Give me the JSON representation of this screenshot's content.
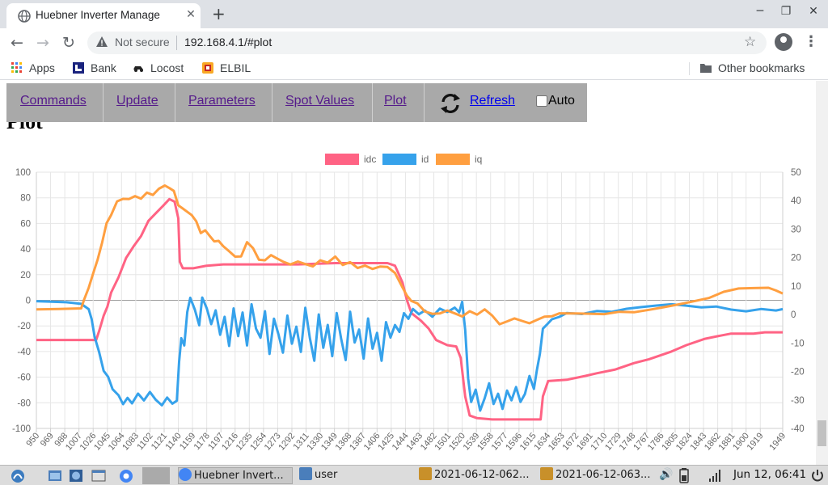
{
  "browser": {
    "tab_title": "Huebner Inverter Manage",
    "tab_close": "✕",
    "new_tab": "+",
    "url_warning": "Not secure",
    "url": "192.168.4.1/#plot",
    "bookmarks": [
      {
        "label": "Apps",
        "icon": "apps-grid-icon"
      },
      {
        "label": "Bank",
        "icon": "bank-icon"
      },
      {
        "label": "Locost",
        "icon": "car-icon"
      },
      {
        "label": "ELBIL",
        "icon": "elbil-icon"
      }
    ],
    "other_bookmarks": "Other bookmarks"
  },
  "page": {
    "heading": "Plot",
    "nav": {
      "commands": "Commands",
      "update": "Update",
      "parameters": "Parameters",
      "spot_values": "Spot Values",
      "plot": "Plot",
      "refresh": "Refresh",
      "auto": "Auto"
    }
  },
  "chart_data": {
    "type": "line",
    "legend_position": "top",
    "grid": true,
    "x": [
      950,
      969,
      988,
      1007,
      1026,
      1045,
      1064,
      1083,
      1102,
      1121,
      1140,
      1159,
      1178,
      1197,
      1216,
      1235,
      1254,
      1273,
      1292,
      1311,
      1330,
      1349,
      1368,
      1387,
      1406,
      1425,
      1444,
      1463,
      1482,
      1501,
      1520,
      1539,
      1558,
      1577,
      1596,
      1615,
      1634,
      1653,
      1672,
      1691,
      1710,
      1729,
      1748,
      1767,
      1786,
      1805,
      1824,
      1843,
      1862,
      1881,
      1900,
      1919,
      1949
    ],
    "x_tick_labels": [
      "950",
      "969",
      "988",
      "1007",
      "1026",
      "1045",
      "1064",
      "1083",
      "1102",
      "1121",
      "1140",
      "1159",
      "1178",
      "1197",
      "1216",
      "1235",
      "1254",
      "1273",
      "1292",
      "1311",
      "1330",
      "1349",
      "1368",
      "1387",
      "1406",
      "1425",
      "1444",
      "1463",
      "1482",
      "1501",
      "1520",
      "1539",
      "1558",
      "1577",
      "1596",
      "1615",
      "1634",
      "1653",
      "1672",
      "1691",
      "1710",
      "1729",
      "1748",
      "1767",
      "1786",
      "1805",
      "1824",
      "1843",
      "1862",
      "1881",
      "1900",
      "1919",
      "1949"
    ],
    "xlim": [
      950,
      1949
    ],
    "y_left": {
      "min": -100,
      "max": 100,
      "ticks": [
        100,
        80,
        60,
        40,
        20,
        0,
        -20,
        -40,
        -60,
        -80,
        -100
      ]
    },
    "y_right": {
      "min": -40,
      "max": 50,
      "ticks": [
        50,
        40,
        30,
        20,
        10,
        0,
        -10,
        -20,
        -30,
        -40
      ]
    },
    "series": [
      {
        "name": "idc",
        "color": "#ff6384",
        "axis": "left",
        "points": [
          [
            950,
            -31
          ],
          [
            1015,
            -31
          ],
          [
            1030,
            -31
          ],
          [
            1034,
            -24
          ],
          [
            1040,
            -12
          ],
          [
            1045,
            -5
          ],
          [
            1050,
            6
          ],
          [
            1060,
            18
          ],
          [
            1070,
            33
          ],
          [
            1080,
            42
          ],
          [
            1090,
            50
          ],
          [
            1100,
            62
          ],
          [
            1110,
            68
          ],
          [
            1120,
            74
          ],
          [
            1128,
            79
          ],
          [
            1135,
            77
          ],
          [
            1140,
            64
          ],
          [
            1142,
            30
          ],
          [
            1146,
            25
          ],
          [
            1160,
            25
          ],
          [
            1178,
            27
          ],
          [
            1200,
            28
          ],
          [
            1250,
            28
          ],
          [
            1300,
            28
          ],
          [
            1350,
            29
          ],
          [
            1400,
            29
          ],
          [
            1420,
            29
          ],
          [
            1430,
            27
          ],
          [
            1440,
            14
          ],
          [
            1446,
            0
          ],
          [
            1452,
            -10
          ],
          [
            1465,
            -16
          ],
          [
            1475,
            -22
          ],
          [
            1485,
            -31
          ],
          [
            1500,
            -35
          ],
          [
            1512,
            -36
          ],
          [
            1518,
            -45
          ],
          [
            1524,
            -75
          ],
          [
            1530,
            -90
          ],
          [
            1540,
            -92
          ],
          [
            1560,
            -93
          ],
          [
            1580,
            -93
          ],
          [
            1610,
            -93
          ],
          [
            1625,
            -93
          ],
          [
            1628,
            -75
          ],
          [
            1635,
            -63
          ],
          [
            1660,
            -62
          ],
          [
            1685,
            -59
          ],
          [
            1700,
            -57
          ],
          [
            1725,
            -54
          ],
          [
            1750,
            -49
          ],
          [
            1770,
            -46
          ],
          [
            1785,
            -43
          ],
          [
            1800,
            -40
          ],
          [
            1820,
            -35
          ],
          [
            1845,
            -30
          ],
          [
            1862,
            -28
          ],
          [
            1880,
            -26
          ],
          [
            1910,
            -26
          ],
          [
            1925,
            -25
          ],
          [
            1949,
            -25
          ]
        ]
      },
      {
        "name": "id",
        "color": "#36a2eb",
        "axis": "left",
        "points": [
          [
            950,
            -1
          ],
          [
            970,
            -1
          ],
          [
            990,
            -1
          ],
          [
            1010,
            -2
          ],
          [
            1020,
            -6
          ],
          [
            1024,
            -14
          ],
          [
            1028,
            -28
          ],
          [
            1034,
            -40
          ],
          [
            1040,
            -55
          ],
          [
            1046,
            -60
          ],
          [
            1052,
            -70
          ],
          [
            1060,
            -75
          ],
          [
            1066,
            -82
          ],
          [
            1072,
            -77
          ],
          [
            1078,
            -81
          ],
          [
            1086,
            -73
          ],
          [
            1094,
            -78
          ],
          [
            1102,
            -71
          ],
          [
            1110,
            -77
          ],
          [
            1118,
            -81
          ],
          [
            1125,
            -75
          ],
          [
            1132,
            -80
          ],
          [
            1138,
            -78
          ],
          [
            1141,
            -48
          ],
          [
            1144,
            -30
          ],
          [
            1148,
            -36
          ],
          [
            1152,
            -10
          ],
          [
            1156,
            1
          ],
          [
            1162,
            -8
          ],
          [
            1168,
            -20
          ],
          [
            1172,
            2
          ],
          [
            1178,
            -6
          ],
          [
            1184,
            -18
          ],
          [
            1190,
            -7
          ],
          [
            1196,
            -26
          ],
          [
            1202,
            -12
          ],
          [
            1208,
            -35
          ],
          [
            1214,
            -6
          ],
          [
            1220,
            -28
          ],
          [
            1226,
            -10
          ],
          [
            1232,
            -36
          ],
          [
            1238,
            -4
          ],
          [
            1244,
            -23
          ],
          [
            1250,
            -30
          ],
          [
            1256,
            -9
          ],
          [
            1262,
            -42
          ],
          [
            1268,
            -14
          ],
          [
            1274,
            -26
          ],
          [
            1280,
            -40
          ],
          [
            1286,
            -11
          ],
          [
            1292,
            -33
          ],
          [
            1298,
            -20
          ],
          [
            1304,
            -40
          ],
          [
            1310,
            -6
          ],
          [
            1316,
            -30
          ],
          [
            1322,
            -48
          ],
          [
            1328,
            -12
          ],
          [
            1334,
            -38
          ],
          [
            1340,
            -20
          ],
          [
            1346,
            -44
          ],
          [
            1352,
            -10
          ],
          [
            1358,
            -30
          ],
          [
            1364,
            -46
          ],
          [
            1370,
            -8
          ],
          [
            1376,
            -32
          ],
          [
            1382,
            -22
          ],
          [
            1388,
            -45
          ],
          [
            1394,
            -14
          ],
          [
            1400,
            -38
          ],
          [
            1406,
            -26
          ],
          [
            1412,
            -48
          ],
          [
            1418,
            -18
          ],
          [
            1424,
            -30
          ],
          [
            1430,
            -20
          ],
          [
            1436,
            -25
          ],
          [
            1442,
            -10
          ],
          [
            1448,
            -14
          ],
          [
            1454,
            -6
          ],
          [
            1462,
            -10
          ],
          [
            1470,
            -7
          ],
          [
            1480,
            -12
          ],
          [
            1490,
            -6
          ],
          [
            1500,
            -9
          ],
          [
            1510,
            -6
          ],
          [
            1516,
            -10
          ],
          [
            1520,
            -2
          ],
          [
            1524,
            -24
          ],
          [
            1528,
            -62
          ],
          [
            1532,
            -80
          ],
          [
            1538,
            -70
          ],
          [
            1544,
            -86
          ],
          [
            1550,
            -76
          ],
          [
            1556,
            -64
          ],
          [
            1562,
            -80
          ],
          [
            1568,
            -72
          ],
          [
            1574,
            -84
          ],
          [
            1580,
            -70
          ],
          [
            1586,
            -78
          ],
          [
            1592,
            -68
          ],
          [
            1598,
            -80
          ],
          [
            1604,
            -74
          ],
          [
            1610,
            -60
          ],
          [
            1616,
            -70
          ],
          [
            1620,
            -55
          ],
          [
            1624,
            -42
          ],
          [
            1628,
            -22
          ],
          [
            1634,
            -18
          ],
          [
            1640,
            -14
          ],
          [
            1650,
            -12
          ],
          [
            1660,
            -9
          ],
          [
            1680,
            -10
          ],
          [
            1700,
            -8
          ],
          [
            1720,
            -9
          ],
          [
            1740,
            -7
          ],
          [
            1760,
            -6
          ],
          [
            1780,
            -5
          ],
          [
            1800,
            -4
          ],
          [
            1820,
            -5
          ],
          [
            1840,
            -6
          ],
          [
            1860,
            -5
          ],
          [
            1880,
            -7
          ],
          [
            1900,
            -8
          ],
          [
            1920,
            -6
          ],
          [
            1940,
            -7
          ],
          [
            1949,
            -6
          ]
        ]
      },
      {
        "name": "iq",
        "color": "#ff9f40",
        "axis": "right",
        "points": [
          [
            950,
            2
          ],
          [
            980,
            2
          ],
          [
            1010,
            2
          ],
          [
            1014,
            5
          ],
          [
            1020,
            9
          ],
          [
            1026,
            14
          ],
          [
            1032,
            19
          ],
          [
            1038,
            25
          ],
          [
            1044,
            32
          ],
          [
            1050,
            35
          ],
          [
            1058,
            40
          ],
          [
            1066,
            41
          ],
          [
            1074,
            41
          ],
          [
            1082,
            42
          ],
          [
            1090,
            41
          ],
          [
            1098,
            43
          ],
          [
            1106,
            42
          ],
          [
            1114,
            44
          ],
          [
            1122,
            45
          ],
          [
            1128,
            44
          ],
          [
            1134,
            43
          ],
          [
            1140,
            38
          ],
          [
            1146,
            37
          ],
          [
            1152,
            36
          ],
          [
            1158,
            35
          ],
          [
            1164,
            33
          ],
          [
            1170,
            29
          ],
          [
            1176,
            30
          ],
          [
            1182,
            28
          ],
          [
            1188,
            26
          ],
          [
            1194,
            26
          ],
          [
            1200,
            24
          ],
          [
            1208,
            22
          ],
          [
            1216,
            20
          ],
          [
            1224,
            20
          ],
          [
            1232,
            25
          ],
          [
            1240,
            23
          ],
          [
            1248,
            19
          ],
          [
            1256,
            19
          ],
          [
            1264,
            21
          ],
          [
            1272,
            20
          ],
          [
            1280,
            19
          ],
          [
            1290,
            18
          ],
          [
            1300,
            19
          ],
          [
            1310,
            18
          ],
          [
            1320,
            17
          ],
          [
            1330,
            19
          ],
          [
            1340,
            18
          ],
          [
            1350,
            20
          ],
          [
            1360,
            17
          ],
          [
            1370,
            18
          ],
          [
            1380,
            16
          ],
          [
            1390,
            17
          ],
          [
            1400,
            16
          ],
          [
            1410,
            17
          ],
          [
            1420,
            17
          ],
          [
            1430,
            15
          ],
          [
            1440,
            10
          ],
          [
            1446,
            7
          ],
          [
            1452,
            5
          ],
          [
            1460,
            4
          ],
          [
            1470,
            1
          ],
          [
            1480,
            0
          ],
          [
            1490,
            0
          ],
          [
            1500,
            1
          ],
          [
            1510,
            0
          ],
          [
            1520,
            -1
          ],
          [
            1530,
            1
          ],
          [
            1540,
            0
          ],
          [
            1550,
            2
          ],
          [
            1560,
            0
          ],
          [
            1570,
            -3
          ],
          [
            1580,
            -2
          ],
          [
            1590,
            -1
          ],
          [
            1600,
            -2
          ],
          [
            1610,
            -3
          ],
          [
            1620,
            -2
          ],
          [
            1630,
            -1
          ],
          [
            1640,
            -1
          ],
          [
            1650,
            0
          ],
          [
            1670,
            0
          ],
          [
            1690,
            0
          ],
          [
            1710,
            0
          ],
          [
            1730,
            1
          ],
          [
            1750,
            1
          ],
          [
            1770,
            2
          ],
          [
            1790,
            3
          ],
          [
            1810,
            4
          ],
          [
            1830,
            5
          ],
          [
            1850,
            6
          ],
          [
            1870,
            8
          ],
          [
            1890,
            9
          ],
          [
            1910,
            9
          ],
          [
            1930,
            9
          ],
          [
            1940,
            8
          ],
          [
            1949,
            7
          ]
        ]
      }
    ]
  },
  "taskbar": {
    "browser_task": "Huebner Invert...",
    "folder_task": "user",
    "image_task_1": "2021-06-12-062...",
    "image_task_2": "2021-06-12-063...",
    "clock": "Jun 12, 06:41"
  }
}
